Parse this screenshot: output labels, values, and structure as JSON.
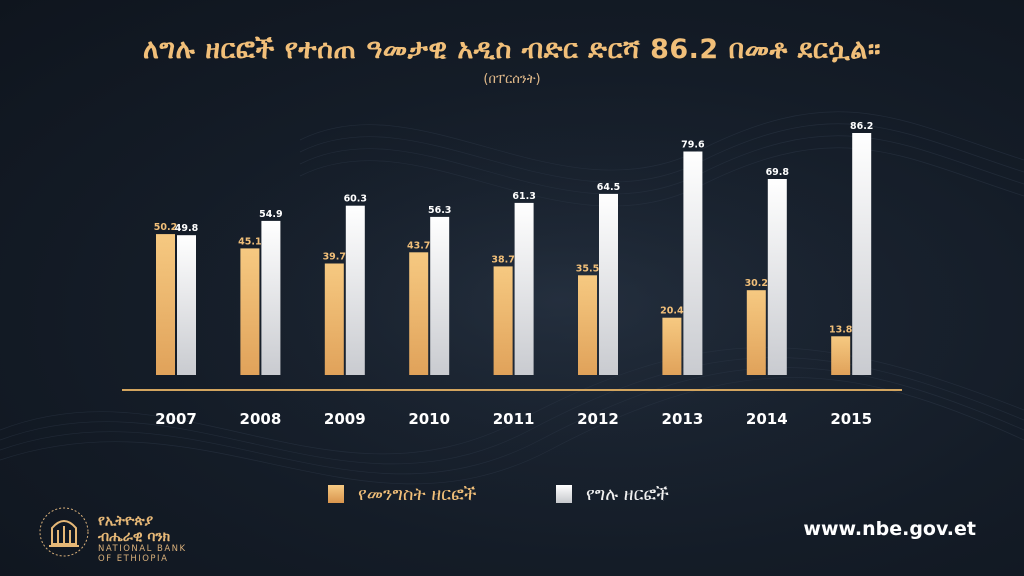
{
  "title": "ለግሉ ዘርፎች የተሰጠ ዓመታዊ አዲስ ብድር ድርሻ 86.2 በመቶ ደርሷል።",
  "subtitle": "(በፐርሰንት)",
  "legend": {
    "government": "የመንግስት ዘርፎች",
    "private": "የግሉ ዘርፎች"
  },
  "branding": {
    "logo_text_am_line1": "የኢትዮጵያ",
    "logo_text_am_line2": "ብሔራዊ ባንክ",
    "logo_text_en_line1": "NATIONAL BANK",
    "logo_text_en_line2": "OF ETHIOPIA",
    "website": "www.nbe.gov.et"
  },
  "colors": {
    "background": "#141c27",
    "government_bar": "#e9ae62",
    "private_bar": "#e8e9ec",
    "baseline": "#d3a55f",
    "title": "#f1bf79"
  },
  "chart_data": {
    "type": "bar",
    "title": "ለግሉ ዘርፎች የተሰጠ ዓመታዊ አዲስ ብድር ድርሻ 86.2 በመቶ ደርሷል።",
    "subtitle": "(በፐርሰንት)",
    "categories": [
      "2007",
      "2008",
      "2009",
      "2010",
      "2011",
      "2012",
      "2013",
      "2014",
      "2015"
    ],
    "series": [
      {
        "name": "የመንግስት ዘርፎች",
        "values": [
          50.2,
          45.1,
          39.7,
          43.7,
          38.7,
          35.5,
          20.4,
          30.2,
          13.8
        ]
      },
      {
        "name": "የግሉ ዘርፎች",
        "values": [
          49.8,
          54.9,
          60.3,
          56.3,
          61.3,
          64.5,
          79.6,
          69.8,
          86.2
        ]
      }
    ],
    "ylim": [
      0,
      100
    ],
    "grid": false,
    "legend_position": "bottom",
    "xlabel": "",
    "ylabel": ""
  }
}
